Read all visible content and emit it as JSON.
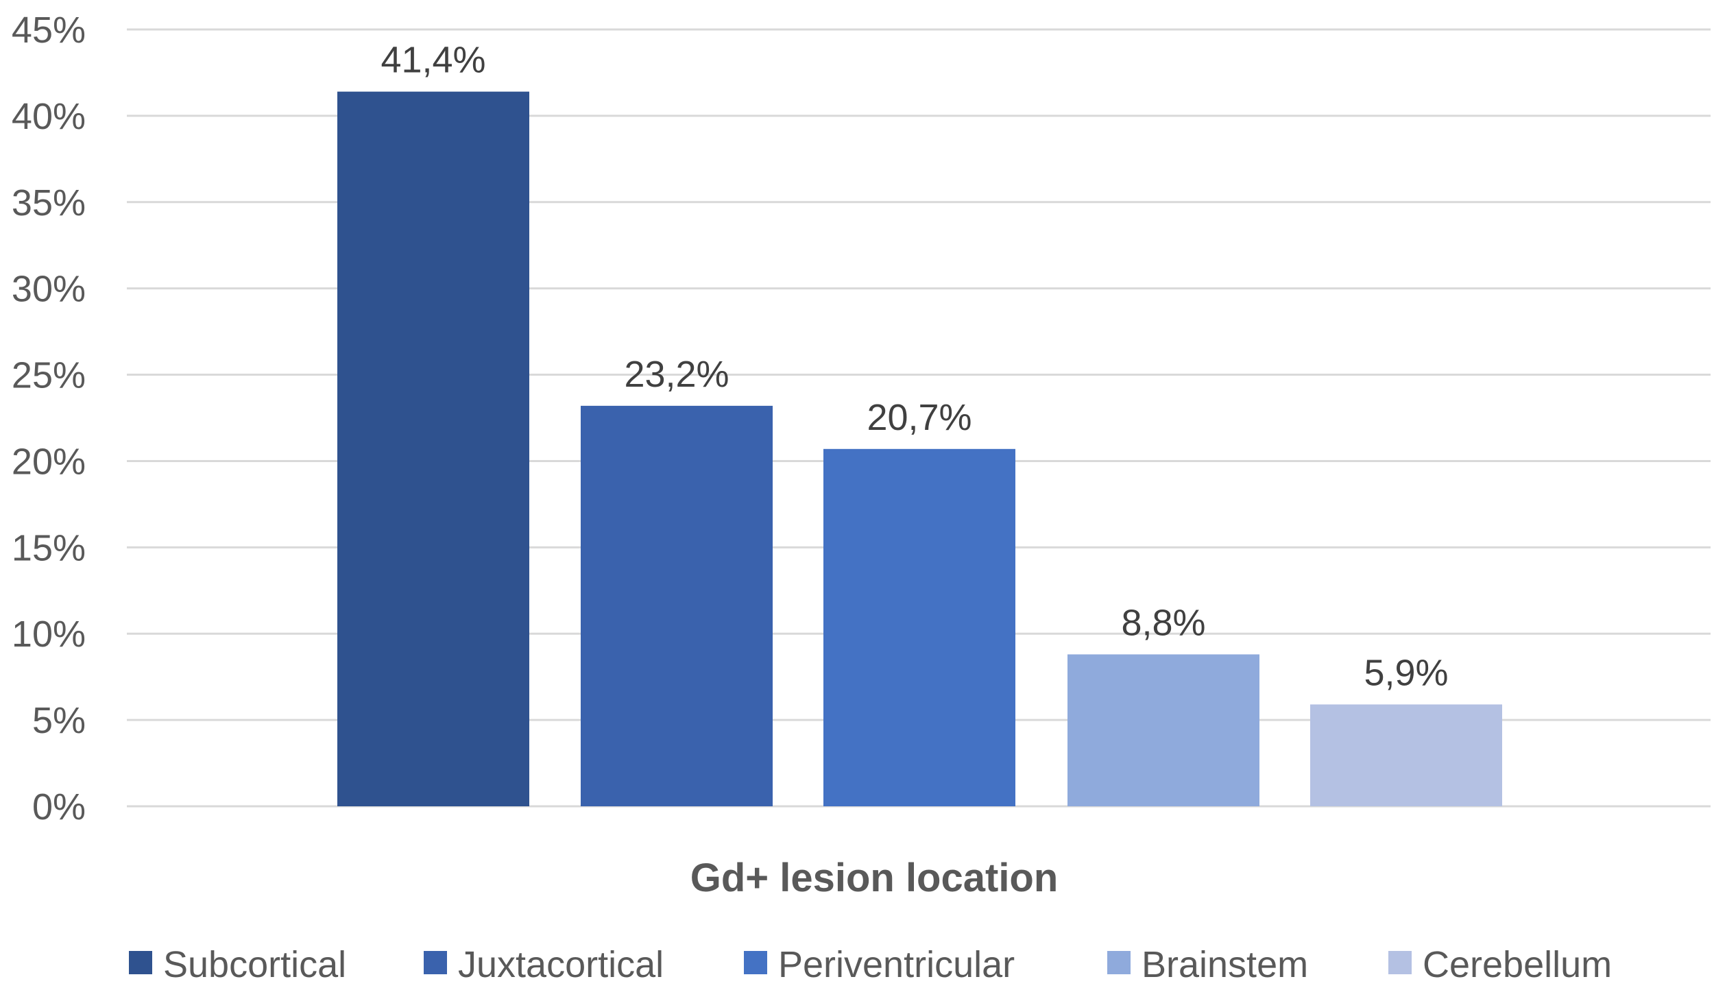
{
  "chart_data": {
    "type": "bar",
    "title": "",
    "xlabel": "Gd+ lesion location",
    "ylabel": "",
    "ylim": [
      0,
      45
    ],
    "y_ticks": [
      "0%",
      "5%",
      "10%",
      "15%",
      "20%",
      "25%",
      "30%",
      "35%",
      "40%",
      "45%"
    ],
    "y_tick_values": [
      0,
      5,
      10,
      15,
      20,
      25,
      30,
      35,
      40,
      45
    ],
    "grid": true,
    "legend_position": "bottom",
    "series": [
      {
        "name": "Subcortical",
        "value": 41.4,
        "label": "41,4%",
        "color": "#2f528f"
      },
      {
        "name": "Juxtacortical",
        "value": 23.2,
        "label": "23,2%",
        "color": "#3a62ad"
      },
      {
        "name": "Periventricular",
        "value": 20.7,
        "label": "20,7%",
        "color": "#4472c4"
      },
      {
        "name": "Brainstem",
        "value": 8.8,
        "label": "8,8%",
        "color": "#8faadc"
      },
      {
        "name": "Cerebellum",
        "value": 5.9,
        "label": "5,9%",
        "color": "#b4c1e3"
      }
    ]
  }
}
